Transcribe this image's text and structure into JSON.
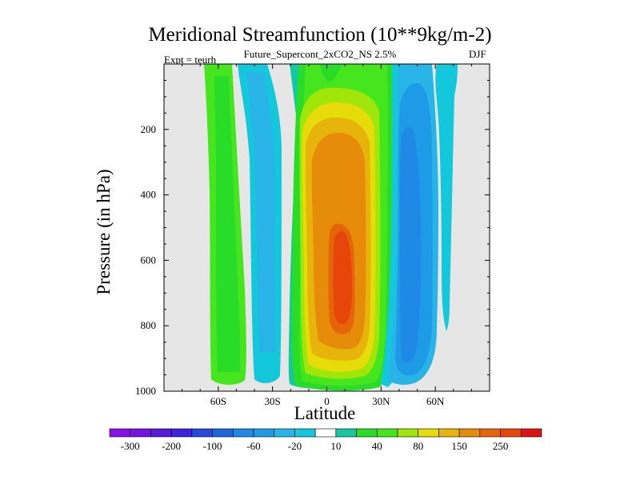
{
  "title": "Meridional Streamfunction (10**9kg/m-2)",
  "subtitle": "Future_Supercont_2xCO2_NS 2.5%",
  "expt_label": "Expt = teurh",
  "season": "DJF",
  "chart_data": {
    "type": "heatmap",
    "subtype": "filled-contour",
    "xlabel": "Latitude",
    "ylabel": "Pressure (in hPa)",
    "xlim": [
      -90,
      90
    ],
    "ylim": [
      1000,
      0
    ],
    "xticks": [
      -60,
      -30,
      0,
      30,
      60
    ],
    "xtick_labels": [
      "60S",
      "30S",
      "0",
      "30N",
      "60N"
    ],
    "yticks": [
      200,
      400,
      600,
      800,
      1000
    ],
    "ytick_labels": [
      "200",
      "400",
      "600",
      "800",
      "1000"
    ],
    "missing_color": "#e6e6e6",
    "colorbar": {
      "levels": [
        -300,
        -250,
        -200,
        -150,
        -100,
        -80,
        -60,
        -40,
        -20,
        -10,
        10,
        20,
        40,
        60,
        80,
        100,
        150,
        200,
        250,
        300
      ],
      "tick_labels": [
        "-300",
        "-200",
        "-100",
        "-60",
        "-20",
        "10",
        "40",
        "80",
        "150",
        "250"
      ],
      "colors": [
        "#8a0ee6",
        "#7512e0",
        "#5a18dc",
        "#3d22e0",
        "#2848dc",
        "#1e66dc",
        "#1e8ae6",
        "#1e9be6",
        "#28b4e6",
        "#14c8dc",
        "#ffffff",
        "#14c8a0",
        "#28dc28",
        "#46e61e",
        "#a0e60a",
        "#e6dc0a",
        "#e6b40a",
        "#e68c0a",
        "#e6640a",
        "#e6460a",
        "#dc1414"
      ]
    },
    "regions": [
      {
        "name": "southern-green-cell",
        "level_color": "#46e61e",
        "lat_range": [
          -76,
          -62
        ],
        "p_range": [
          0,
          975
        ]
      },
      {
        "name": "southern-blue-cell",
        "level_color": "#28b4e6",
        "lat_range": [
          -56,
          -40
        ],
        "p_range": [
          0,
          980
        ]
      },
      {
        "name": "tropical-positive-cell",
        "level_color": "#46e61e",
        "lat_range": [
          -20,
          36
        ],
        "p_range": [
          0,
          985
        ]
      },
      {
        "name": "tropical-positive-core",
        "level_color": "#e68c0a",
        "lat_range": [
          -5,
          22
        ],
        "p_range": [
          160,
          880
        ]
      },
      {
        "name": "tropical-positive-max",
        "level_color": "#e6460a",
        "lat_range": [
          3,
          14
        ],
        "p_range": [
          490,
          770
        ]
      },
      {
        "name": "northern-negative-cell",
        "level_color": "#1e8ae6",
        "lat_range": [
          38,
          62
        ],
        "p_range": [
          0,
          975
        ]
      },
      {
        "name": "polar-blue-cell",
        "level_color": "#14c8dc",
        "lat_range": [
          62,
          74
        ],
        "p_range": [
          0,
          800
        ]
      }
    ]
  }
}
